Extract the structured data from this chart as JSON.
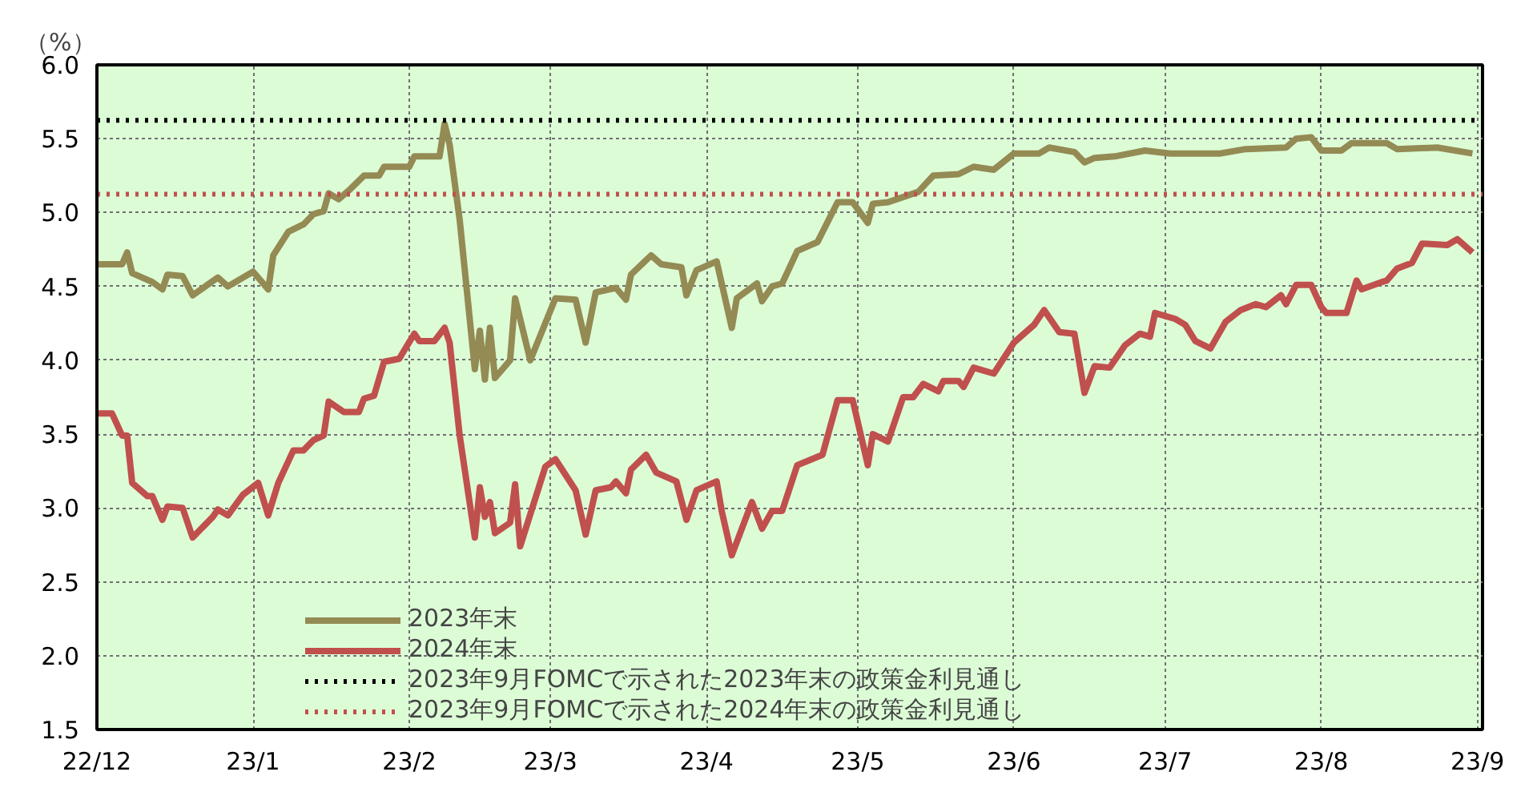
{
  "chart_data": {
    "type": "line",
    "ylabel": "（%）",
    "xlim": [
      "2022-12-01",
      "2023-09-02"
    ],
    "xticks": [
      {
        "value": "2022-12-01",
        "label": "22/12"
      },
      {
        "value": "2023-01-01",
        "label": "23/1"
      },
      {
        "value": "2023-02-01",
        "label": "23/2"
      },
      {
        "value": "2023-03-01",
        "label": "23/3"
      },
      {
        "value": "2023-04-01",
        "label": "23/4"
      },
      {
        "value": "2023-05-01",
        "label": "23/5"
      },
      {
        "value": "2023-06-01",
        "label": "23/6"
      },
      {
        "value": "2023-07-01",
        "label": "23/7"
      },
      {
        "value": "2023-08-01",
        "label": "23/8"
      },
      {
        "value": "2023-09-01",
        "label": "23/9"
      }
    ],
    "ylim": [
      1.5,
      6.0
    ],
    "yticks": [
      {
        "value": 1.5,
        "label": "1.5"
      },
      {
        "value": 2.0,
        "label": "2.0"
      },
      {
        "value": 2.5,
        "label": "2.5"
      },
      {
        "value": 3.0,
        "label": "3.0"
      },
      {
        "value": 3.5,
        "label": "3.5"
      },
      {
        "value": 4.0,
        "label": "4.0"
      },
      {
        "value": 4.5,
        "label": "4.5"
      },
      {
        "value": 5.0,
        "label": "5.0"
      },
      {
        "value": 5.5,
        "label": "5.5"
      },
      {
        "value": 6.0,
        "label": "6.0"
      }
    ],
    "grid": true,
    "legend": "bottom left",
    "line_style": "solid",
    "marker": "none",
    "series": [
      {
        "name": "2023年末",
        "color": "#948a54",
        "x": [
          "2022-12-01",
          "2022-12-06",
          "2022-12-07",
          "2022-12-08",
          "2022-12-12",
          "2022-12-14",
          "2022-12-15",
          "2022-12-18",
          "2022-12-20",
          "2022-12-25",
          "2022-12-27",
          "2023-01-01",
          "2023-01-04",
          "2023-01-05",
          "2023-01-08",
          "2023-01-11",
          "2023-01-13",
          "2023-01-15",
          "2023-01-16",
          "2023-01-18",
          "2023-01-20",
          "2023-01-23",
          "2023-01-26",
          "2023-01-27",
          "2023-02-01",
          "2023-02-02",
          "2023-02-07",
          "2023-02-08",
          "2023-02-09",
          "2023-02-11",
          "2023-02-14",
          "2023-02-15",
          "2023-02-16",
          "2023-02-17",
          "2023-02-18",
          "2023-02-21",
          "2023-02-22",
          "2023-02-25",
          "2023-03-02",
          "2023-03-06",
          "2023-03-08",
          "2023-03-10",
          "2023-03-14",
          "2023-03-16",
          "2023-03-17",
          "2023-03-21",
          "2023-03-23",
          "2023-03-27",
          "2023-03-28",
          "2023-03-30",
          "2023-04-03",
          "2023-04-04",
          "2023-04-06",
          "2023-04-07",
          "2023-04-11",
          "2023-04-12",
          "2023-04-14",
          "2023-04-16",
          "2023-04-19",
          "2023-04-23",
          "2023-04-27",
          "2023-04-30",
          "2023-05-03",
          "2023-05-04",
          "2023-05-07",
          "2023-05-13",
          "2023-05-16",
          "2023-05-21",
          "2023-05-24",
          "2023-05-28",
          "2023-06-01",
          "2023-06-06",
          "2023-06-08",
          "2023-06-13",
          "2023-06-15",
          "2023-06-17",
          "2023-06-21",
          "2023-06-27",
          "2023-07-02",
          "2023-07-12",
          "2023-07-17",
          "2023-07-25",
          "2023-07-27",
          "2023-07-30",
          "2023-08-01",
          "2023-08-05",
          "2023-08-07",
          "2023-08-14",
          "2023-08-16",
          "2023-08-24",
          "2023-08-31"
        ],
        "values": [
          4.65,
          4.65,
          4.73,
          4.59,
          4.53,
          4.48,
          4.58,
          4.57,
          4.44,
          4.56,
          4.5,
          4.6,
          4.48,
          4.71,
          4.87,
          4.92,
          4.99,
          5.01,
          5.13,
          5.09,
          5.15,
          5.25,
          5.25,
          5.31,
          5.31,
          5.38,
          5.38,
          5.6,
          5.46,
          4.95,
          3.94,
          4.2,
          3.87,
          4.22,
          3.88,
          4.0,
          4.42,
          4.0,
          4.42,
          4.41,
          4.12,
          4.46,
          4.49,
          4.41,
          4.58,
          4.71,
          4.65,
          4.63,
          4.44,
          4.61,
          4.67,
          4.52,
          4.22,
          4.42,
          4.52,
          4.4,
          4.5,
          4.52,
          4.74,
          4.8,
          5.07,
          5.07,
          4.93,
          5.06,
          5.07,
          5.14,
          5.25,
          5.26,
          5.31,
          5.29,
          5.4,
          5.4,
          5.44,
          5.41,
          5.34,
          5.37,
          5.38,
          5.42,
          5.4,
          5.4,
          5.43,
          5.44,
          5.5,
          5.51,
          5.42,
          5.42,
          5.47,
          5.47,
          5.43,
          5.44,
          5.4
        ]
      },
      {
        "name": "2024年末",
        "color": "#c0504d",
        "x": [
          "2022-12-01",
          "2022-12-04",
          "2022-12-06",
          "2022-12-07",
          "2022-12-08",
          "2022-12-11",
          "2022-12-12",
          "2022-12-14",
          "2022-12-15",
          "2022-12-18",
          "2022-12-20",
          "2022-12-24",
          "2022-12-25",
          "2022-12-27",
          "2022-12-30",
          "2023-01-02",
          "2023-01-04",
          "2023-01-06",
          "2023-01-09",
          "2023-01-11",
          "2023-01-13",
          "2023-01-15",
          "2023-01-16",
          "2023-01-19",
          "2023-01-22",
          "2023-01-23",
          "2023-01-25",
          "2023-01-27",
          "2023-01-30",
          "2023-02-02",
          "2023-02-03",
          "2023-02-06",
          "2023-02-08",
          "2023-02-09",
          "2023-02-11",
          "2023-02-14",
          "2023-02-15",
          "2023-02-16",
          "2023-02-17",
          "2023-02-18",
          "2023-02-21",
          "2023-02-22",
          "2023-02-23",
          "2023-02-28",
          "2023-03-02",
          "2023-03-06",
          "2023-03-08",
          "2023-03-10",
          "2023-03-13",
          "2023-03-14",
          "2023-03-16",
          "2023-03-17",
          "2023-03-20",
          "2023-03-22",
          "2023-03-26",
          "2023-03-28",
          "2023-03-30",
          "2023-04-03",
          "2023-04-04",
          "2023-04-06",
          "2023-04-10",
          "2023-04-12",
          "2023-04-14",
          "2023-04-16",
          "2023-04-19",
          "2023-04-24",
          "2023-04-27",
          "2023-04-30",
          "2023-05-03",
          "2023-05-04",
          "2023-05-07",
          "2023-05-10",
          "2023-05-12",
          "2023-05-14",
          "2023-05-17",
          "2023-05-18",
          "2023-05-21",
          "2023-05-22",
          "2023-05-24",
          "2023-05-28",
          "2023-06-01",
          "2023-06-05",
          "2023-06-07",
          "2023-06-10",
          "2023-06-13",
          "2023-06-15",
          "2023-06-17",
          "2023-06-20",
          "2023-06-23",
          "2023-06-26",
          "2023-06-28",
          "2023-06-29",
          "2023-07-03",
          "2023-07-05",
          "2023-07-07",
          "2023-07-10",
          "2023-07-13",
          "2023-07-16",
          "2023-07-19",
          "2023-07-21",
          "2023-07-24",
          "2023-07-25",
          "2023-07-27",
          "2023-07-30",
          "2023-08-01",
          "2023-08-02",
          "2023-08-06",
          "2023-08-08",
          "2023-08-09",
          "2023-08-13",
          "2023-08-14",
          "2023-08-16",
          "2023-08-19",
          "2023-08-21",
          "2023-08-26",
          "2023-08-28",
          "2023-08-31"
        ],
        "values": [
          3.64,
          3.64,
          3.49,
          3.49,
          3.17,
          3.08,
          3.08,
          2.92,
          3.01,
          3.0,
          2.8,
          2.94,
          2.99,
          2.95,
          3.09,
          3.17,
          2.95,
          3.17,
          3.39,
          3.39,
          3.46,
          3.49,
          3.72,
          3.65,
          3.65,
          3.74,
          3.76,
          3.99,
          4.01,
          4.18,
          4.13,
          4.13,
          4.22,
          4.12,
          3.49,
          2.8,
          3.14,
          2.94,
          3.04,
          2.83,
          2.9,
          3.16,
          2.74,
          3.28,
          3.33,
          3.12,
          2.82,
          3.12,
          3.14,
          3.18,
          3.1,
          3.26,
          3.36,
          3.24,
          3.18,
          2.92,
          3.12,
          3.18,
          2.98,
          2.68,
          3.04,
          2.86,
          2.98,
          2.98,
          3.29,
          3.36,
          3.73,
          3.73,
          3.29,
          3.5,
          3.45,
          3.75,
          3.75,
          3.84,
          3.79,
          3.86,
          3.86,
          3.82,
          3.95,
          3.91,
          4.12,
          4.24,
          4.34,
          4.19,
          4.18,
          3.78,
          3.96,
          3.95,
          4.1,
          4.18,
          4.16,
          4.32,
          4.28,
          4.24,
          4.13,
          4.08,
          4.26,
          4.34,
          4.38,
          4.36,
          4.44,
          4.38,
          4.51,
          4.51,
          4.36,
          4.32,
          4.32,
          4.54,
          4.48,
          4.53,
          4.54,
          4.62,
          4.66,
          4.79,
          4.78,
          4.82,
          4.73
        ]
      }
    ],
    "ref_lines": [
      {
        "axis": "y",
        "value": 5.625,
        "label": "2023年9月FOMCで示された2023年末の政策金利見通し",
        "color": "#000000",
        "line_style": "dotted"
      },
      {
        "axis": "y",
        "value": 5.125,
        "label": "2023年9月FOMCで示された2024年末の政策金利見通し",
        "color": "#c0504d",
        "line_style": "dotted"
      }
    ]
  }
}
